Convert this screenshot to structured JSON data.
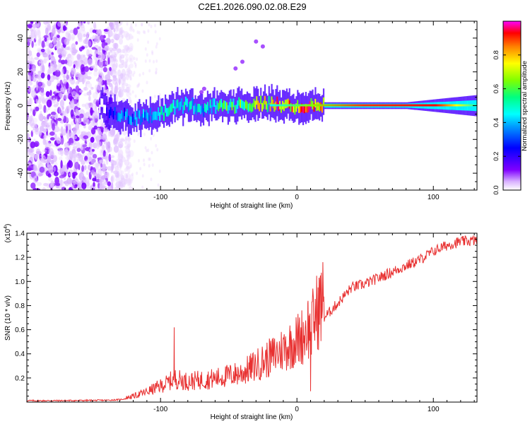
{
  "figure": {
    "title": "C2E1.2026.090.02.08.E29"
  },
  "chart_data": [
    {
      "type": "heatmap",
      "title": "C2E1.2026.090.02.08.E29",
      "xlabel": "Height of straight line (km)",
      "ylabel": "Frequency (Hz)",
      "xlim": [
        -198,
        132
      ],
      "ylim": [
        -50,
        50
      ],
      "x_ticks": [
        -100,
        0,
        100
      ],
      "y_ticks": [
        -40,
        -20,
        0,
        20,
        40
      ],
      "colorbar": {
        "label": "Normalized spectral amplitude",
        "range": [
          0,
          1
        ],
        "ticks": [
          "0.0",
          "0.2",
          "0.4",
          "0.6",
          "0.8"
        ],
        "colormap": [
          "#ffffff",
          "#d9b3ff",
          "#7f00ff",
          "#0000ff",
          "#00a0ff",
          "#00ffff",
          "#00ff80",
          "#80ff00",
          "#ffff00",
          "#ff8000",
          "#ff0000",
          "#ff00ff"
        ]
      },
      "ridge": {
        "description_points_x_km": [
          -140,
          -130,
          -120,
          -110,
          -100,
          -90,
          -80,
          -70,
          -60,
          -50,
          -40,
          -30,
          -20,
          -10,
          0,
          5,
          10,
          20,
          40,
          60,
          80,
          100,
          120,
          132
        ],
        "frequency_hz": [
          -6,
          -5,
          -7,
          -6,
          -5,
          -1,
          1,
          -2,
          0,
          0,
          0,
          1,
          1,
          0,
          -1,
          0,
          0,
          0,
          0,
          0,
          0,
          0,
          0,
          0
        ],
        "peak_amplitude": [
          0.3,
          0.4,
          0.45,
          0.5,
          0.55,
          0.6,
          0.55,
          0.5,
          0.6,
          0.7,
          0.7,
          0.8,
          0.9,
          1.0,
          0.9,
          1.0,
          1.0,
          1.0,
          1.0,
          1.0,
          0.95,
          0.7,
          0.55,
          0.5
        ]
      }
    },
    {
      "type": "line",
      "xlabel": "Height of straight line (km)",
      "ylabel": "SNR (10 * v/v)",
      "y_multiplier": "(x10",
      "y_multiplier_exp": "4",
      "y_multiplier_close": ")",
      "xlim": [
        -198,
        132
      ],
      "ylim": [
        0,
        1.4
      ],
      "x_ticks": [
        -100,
        0,
        100
      ],
      "y_ticks": [
        "0.2",
        "0.4",
        "0.6",
        "0.8",
        "1.0",
        "1.2",
        "1.4"
      ],
      "series": [
        {
          "name": "SNR",
          "color": "#e83030",
          "x": [
            -198,
            -180,
            -160,
            -140,
            -130,
            -120,
            -110,
            -100,
            -95,
            -90,
            -85,
            -80,
            -70,
            -60,
            -50,
            -40,
            -30,
            -20,
            -10,
            0,
            5,
            8,
            10,
            12,
            15,
            20,
            30,
            40,
            50,
            60,
            70,
            80,
            90,
            100,
            110,
            120,
            132
          ],
          "values": [
            0.012,
            0.012,
            0.013,
            0.015,
            0.02,
            0.04,
            0.07,
            0.11,
            0.13,
            0.16,
            0.15,
            0.14,
            0.15,
            0.16,
            0.18,
            0.2,
            0.25,
            0.3,
            0.36,
            0.42,
            0.46,
            0.52,
            0.45,
            0.56,
            0.62,
            0.7,
            0.82,
            0.95,
            0.98,
            1.03,
            1.08,
            1.13,
            1.18,
            1.25,
            1.3,
            1.33,
            1.34
          ]
        }
      ],
      "spikes": [
        {
          "x": -90,
          "value": 0.62
        },
        {
          "x": 8,
          "value": 0.82
        },
        {
          "x": 10,
          "value": 0.09
        }
      ]
    }
  ]
}
